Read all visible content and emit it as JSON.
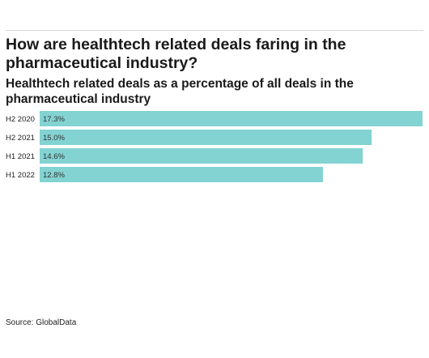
{
  "header": {
    "title": "How are healthtech related deals faring in the pharmaceutical industry?",
    "subtitle": "Healthtech related deals as a percentage of all deals in the pharmaceutical industry"
  },
  "footer": {
    "source": "Source: GlobalData"
  },
  "colors": {
    "bar": "#82d3d1"
  },
  "chart_data": {
    "type": "bar",
    "orientation": "horizontal",
    "categories": [
      "H2 2020",
      "H2 2021",
      "H1 2021",
      "H1 2022"
    ],
    "values": [
      17.3,
      15.0,
      14.6,
      12.8
    ],
    "value_labels": [
      "17.3%",
      "15.0%",
      "14.6%",
      "12.8%"
    ],
    "unit": "%",
    "title": "How are healthtech related deals faring in the pharmaceutical industry?",
    "subtitle": "Healthtech related deals as a percentage of all deals in the pharmaceutical industry",
    "xlabel": "",
    "ylabel": "",
    "xlim": [
      0,
      17.3
    ],
    "grid": false,
    "legend": "none"
  }
}
